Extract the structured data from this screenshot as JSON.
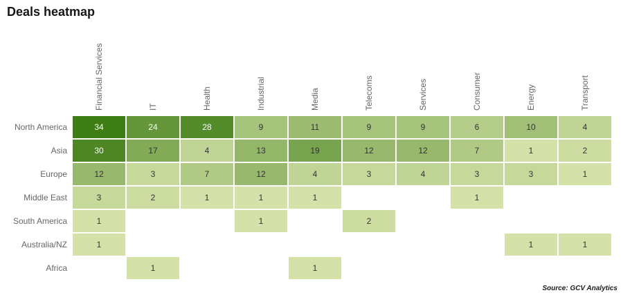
{
  "title": "Deals heatmap",
  "source": "Source: GCV Analytics",
  "chart_data": {
    "type": "heatmap",
    "title": "Deals heatmap",
    "columns": [
      "Financial Services",
      "IT",
      "Health",
      "Industrial",
      "Media",
      "Telecoms",
      "Services",
      "Consumer",
      "Energy",
      "Transport"
    ],
    "rows": [
      "North America",
      "Asia",
      "Europe",
      "Middle East",
      "South America",
      "Australia/NZ",
      "Africa"
    ],
    "values": [
      [
        34,
        24,
        28,
        9,
        11,
        9,
        9,
        6,
        10,
        4
      ],
      [
        30,
        17,
        4,
        13,
        19,
        12,
        12,
        7,
        1,
        2
      ],
      [
        12,
        3,
        7,
        12,
        4,
        3,
        4,
        3,
        3,
        1
      ],
      [
        3,
        2,
        1,
        1,
        1,
        null,
        null,
        1,
        null,
        null
      ],
      [
        1,
        null,
        null,
        1,
        null,
        2,
        null,
        null,
        null,
        null
      ],
      [
        1,
        null,
        null,
        null,
        null,
        null,
        null,
        null,
        1,
        1
      ],
      [
        null,
        1,
        null,
        null,
        1,
        null,
        null,
        null,
        null,
        null
      ]
    ],
    "colorscale": {
      "min_color": "#dde8b2",
      "max_color": "#3e7c14",
      "min_value": 0,
      "max_value": 34,
      "gamma": 0.8
    },
    "white_text_threshold": 24,
    "empty_cell": "blank",
    "legend": false,
    "grid": false
  }
}
